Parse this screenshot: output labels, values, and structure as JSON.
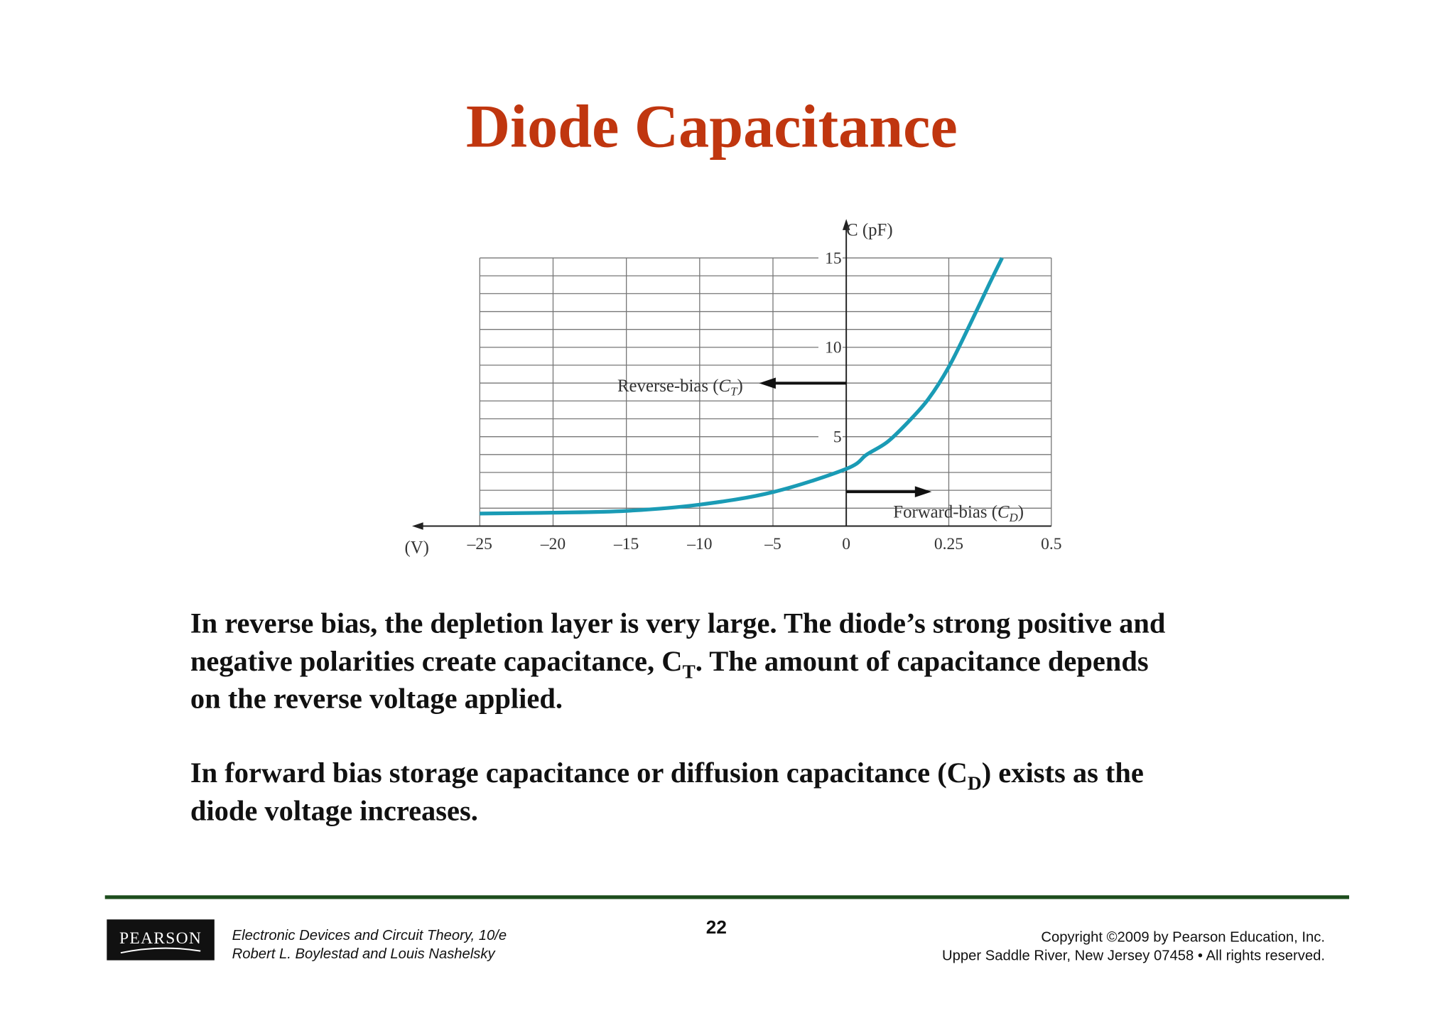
{
  "title": "Diode Capacitance",
  "chart_data": {
    "type": "line",
    "x_label": "(V)",
    "y_label": "C (pF)",
    "xlim": [
      -25,
      0.5
    ],
    "ylim": [
      0,
      15
    ],
    "xticks": [
      {
        "value": -25,
        "label": "–25"
      },
      {
        "value": -20,
        "label": "–20"
      },
      {
        "value": -15,
        "label": "–15"
      },
      {
        "value": -10,
        "label": "–10"
      },
      {
        "value": -5,
        "label": "–5"
      },
      0,
      0.25,
      0.5
    ],
    "yticks": [
      5,
      10,
      15
    ],
    "ygrid": [
      1,
      2,
      3,
      4,
      5,
      6,
      7,
      8,
      9,
      10,
      11,
      12,
      13,
      14,
      15
    ],
    "series": [
      {
        "color": "#1a9bb5",
        "x": [
          -25,
          -20,
          -15,
          -10,
          -5,
          0,
          0.05,
          0.1,
          0.15,
          0.2,
          0.25,
          0.3,
          0.35,
          0.38
        ],
        "values": [
          0.7,
          0.75,
          0.85,
          1.2,
          1.9,
          3.2,
          4.0,
          4.7,
          5.8,
          7.1,
          8.9,
          11.2,
          13.6,
          15
        ]
      }
    ],
    "annotations": [
      {
        "text": "Reverse-bias (",
        "symbol": "C",
        "subscript": "T",
        "close": ")"
      },
      {
        "text": "Forward-bias (",
        "symbol": "C",
        "subscript": "D",
        "close": ")"
      }
    ]
  },
  "body": {
    "paragraph1": {
      "line1": "In reverse bias, the depletion layer is very large. The diode’s strong positive and",
      "line2a": "negative polarities create capacitance, C",
      "line2sub": "T",
      "line2b": ". The amount of capacitance depends",
      "line3": "on the reverse voltage applied."
    },
    "paragraph2": {
      "line1a": "In forward bias storage capacitance or diffusion capacitance (C",
      "line1sub": "D",
      "line1b": ") exists as the",
      "line2": "diode voltage increases."
    }
  },
  "footer": {
    "logo": "PEARSON",
    "book": "Electronic Devices and Circuit Theory, 10/e",
    "authors": "Robert L. Boylestad and Louis Nashelsky",
    "page": "22",
    "copyright": "Copyright ©2009 by Pearson Education, Inc.",
    "address": "Upper Saddle River, New Jersey 07458 • All rights reserved."
  }
}
